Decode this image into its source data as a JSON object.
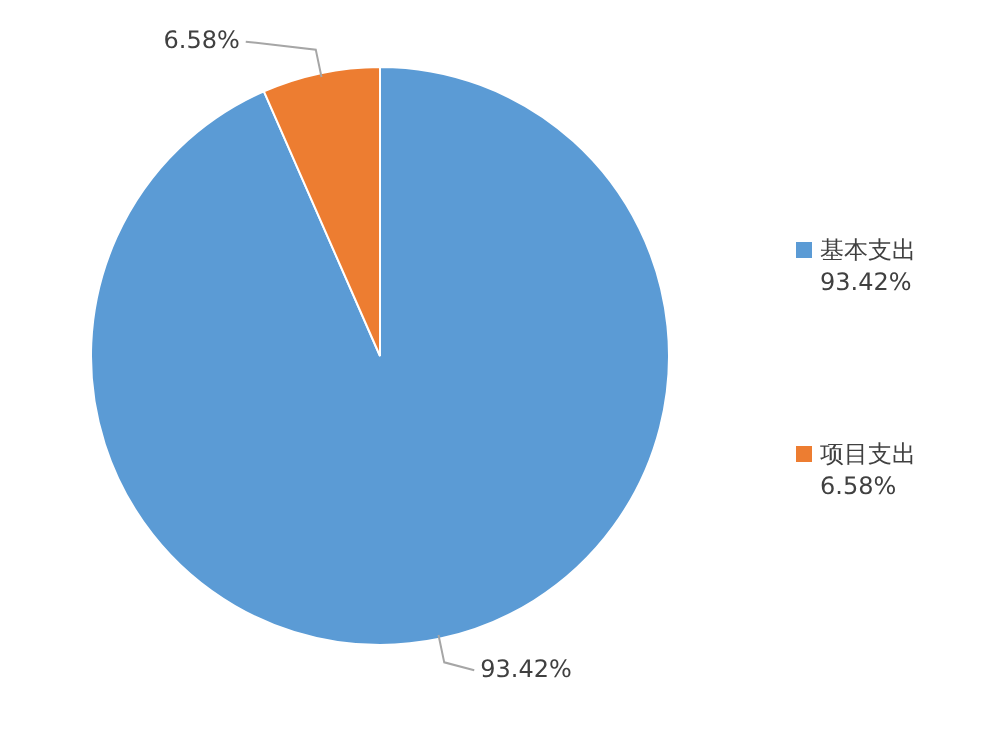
{
  "chart_data": {
    "type": "pie",
    "categories": [
      "基本支出",
      "项目支出"
    ],
    "values": [
      93.42,
      6.58
    ],
    "colors": [
      "#5b9bd5",
      "#ed7d31"
    ],
    "value_labels": [
      "93.42%",
      "6.58%"
    ],
    "legend": "right"
  }
}
